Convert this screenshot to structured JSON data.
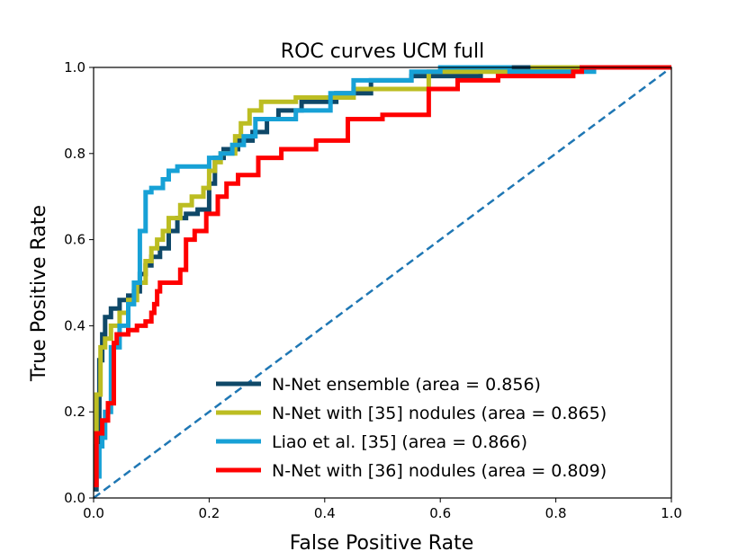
{
  "chart_data": {
    "type": "line",
    "title": "ROC curves UCM full",
    "xlabel": "False Positive Rate",
    "ylabel": "True Positive Rate",
    "xlim": [
      0,
      1
    ],
    "ylim": [
      0,
      1
    ],
    "xticks": [
      "0.0",
      "0.2",
      "0.4",
      "0.6",
      "0.8",
      "1.0"
    ],
    "yticks": [
      "0.0",
      "0.2",
      "0.4",
      "0.6",
      "0.8",
      "1.0"
    ],
    "grid": false,
    "legend_position": "lower-right",
    "diagonal": {
      "x": [
        0,
        1
      ],
      "y": [
        0,
        1
      ],
      "color": "#1f77b4",
      "style": "dashed"
    },
    "series": [
      {
        "name": "N-Net ensemble (area = 0.856)",
        "color": "#0f4868",
        "x": [
          0,
          0.005,
          0.005,
          0.01,
          0.01,
          0.015,
          0.015,
          0.02,
          0.02,
          0.03,
          0.03,
          0.045,
          0.045,
          0.06,
          0.06,
          0.07,
          0.07,
          0.08,
          0.08,
          0.09,
          0.09,
          0.1,
          0.1,
          0.115,
          0.115,
          0.13,
          0.13,
          0.145,
          0.145,
          0.16,
          0.16,
          0.18,
          0.18,
          0.2,
          0.2,
          0.21,
          0.21,
          0.225,
          0.225,
          0.25,
          0.25,
          0.275,
          0.275,
          0.3,
          0.3,
          0.32,
          0.32,
          0.36,
          0.36,
          0.42,
          0.42,
          0.48,
          0.48,
          0.55,
          0.55,
          0.67,
          0.67,
          0.78,
          0.78,
          0.85,
          0.85,
          1.0
        ],
        "y": [
          0.02,
          0.02,
          0.12,
          0.12,
          0.32,
          0.32,
          0.38,
          0.38,
          0.42,
          0.42,
          0.44,
          0.44,
          0.46,
          0.46,
          0.47,
          0.47,
          0.48,
          0.48,
          0.52,
          0.52,
          0.54,
          0.54,
          0.56,
          0.56,
          0.58,
          0.58,
          0.62,
          0.62,
          0.65,
          0.65,
          0.66,
          0.66,
          0.67,
          0.67,
          0.73,
          0.73,
          0.79,
          0.79,
          0.81,
          0.81,
          0.83,
          0.83,
          0.85,
          0.85,
          0.88,
          0.88,
          0.9,
          0.9,
          0.92,
          0.92,
          0.94,
          0.94,
          0.97,
          0.97,
          0.98,
          0.98,
          1.0,
          1.0,
          1.0,
          1.0,
          1.0,
          1.0
        ]
      },
      {
        "name": "N-Net with [35] nodules (area = 0.865)",
        "color": "#bcbd22",
        "x": [
          0,
          0.005,
          0.005,
          0.012,
          0.012,
          0.02,
          0.02,
          0.03,
          0.03,
          0.045,
          0.045,
          0.06,
          0.06,
          0.075,
          0.075,
          0.09,
          0.09,
          0.1,
          0.1,
          0.11,
          0.11,
          0.12,
          0.12,
          0.13,
          0.13,
          0.15,
          0.15,
          0.17,
          0.17,
          0.19,
          0.19,
          0.2,
          0.2,
          0.21,
          0.21,
          0.22,
          0.22,
          0.245,
          0.245,
          0.255,
          0.255,
          0.27,
          0.27,
          0.29,
          0.29,
          0.35,
          0.35,
          0.45,
          0.45,
          0.58,
          0.58,
          0.76,
          0.76,
          0.85,
          0.85,
          1.0
        ],
        "y": [
          0.05,
          0.05,
          0.24,
          0.24,
          0.35,
          0.35,
          0.37,
          0.37,
          0.4,
          0.4,
          0.43,
          0.43,
          0.46,
          0.46,
          0.5,
          0.5,
          0.55,
          0.55,
          0.58,
          0.58,
          0.6,
          0.6,
          0.62,
          0.62,
          0.65,
          0.65,
          0.68,
          0.68,
          0.7,
          0.7,
          0.72,
          0.72,
          0.76,
          0.76,
          0.78,
          0.78,
          0.8,
          0.8,
          0.84,
          0.84,
          0.87,
          0.87,
          0.9,
          0.9,
          0.92,
          0.92,
          0.93,
          0.93,
          0.95,
          0.95,
          0.99,
          0.99,
          1.0,
          1.0,
          1.0,
          1.0
        ]
      },
      {
        "name": "Liao et al. [35] (area = 0.866)",
        "color": "#17a1d6",
        "x": [
          0,
          0.005,
          0.005,
          0.01,
          0.01,
          0.015,
          0.015,
          0.02,
          0.02,
          0.03,
          0.03,
          0.045,
          0.045,
          0.06,
          0.06,
          0.07,
          0.07,
          0.08,
          0.08,
          0.09,
          0.09,
          0.1,
          0.1,
          0.12,
          0.12,
          0.13,
          0.13,
          0.145,
          0.145,
          0.2,
          0.2,
          0.22,
          0.22,
          0.24,
          0.24,
          0.26,
          0.26,
          0.28,
          0.28,
          0.35,
          0.35,
          0.41,
          0.41,
          0.45,
          0.45,
          0.55,
          0.55,
          0.6,
          0.6,
          0.72,
          0.72,
          0.8,
          0.8,
          0.87,
          0.87
        ],
        "y": [
          0.03,
          0.03,
          0.05,
          0.05,
          0.12,
          0.12,
          0.14,
          0.14,
          0.2,
          0.2,
          0.35,
          0.35,
          0.4,
          0.4,
          0.45,
          0.45,
          0.5,
          0.5,
          0.62,
          0.62,
          0.71,
          0.71,
          0.72,
          0.72,
          0.74,
          0.74,
          0.76,
          0.76,
          0.77,
          0.77,
          0.79,
          0.79,
          0.8,
          0.8,
          0.82,
          0.82,
          0.84,
          0.84,
          0.88,
          0.88,
          0.9,
          0.9,
          0.94,
          0.94,
          0.97,
          0.97,
          0.99,
          0.99,
          1.0,
          1.0,
          0.99,
          0.99,
          0.99,
          0.99,
          0.99
        ]
      },
      {
        "name": "N-Net with [36] nodules (area = 0.809)",
        "color": "#ff0000",
        "x": [
          0,
          0.005,
          0.005,
          0.015,
          0.015,
          0.025,
          0.025,
          0.035,
          0.035,
          0.04,
          0.04,
          0.06,
          0.06,
          0.075,
          0.075,
          0.09,
          0.09,
          0.1,
          0.1,
          0.105,
          0.105,
          0.11,
          0.11,
          0.115,
          0.115,
          0.15,
          0.15,
          0.16,
          0.16,
          0.175,
          0.175,
          0.195,
          0.195,
          0.215,
          0.215,
          0.23,
          0.23,
          0.25,
          0.25,
          0.285,
          0.285,
          0.325,
          0.325,
          0.385,
          0.385,
          0.44,
          0.44,
          0.5,
          0.5,
          0.58,
          0.58,
          0.63,
          0.63,
          0.7,
          0.7,
          0.83,
          0.83,
          0.845,
          0.845,
          1.0
        ],
        "y": [
          0.03,
          0.03,
          0.15,
          0.15,
          0.18,
          0.18,
          0.22,
          0.22,
          0.36,
          0.36,
          0.38,
          0.38,
          0.39,
          0.39,
          0.4,
          0.4,
          0.41,
          0.41,
          0.43,
          0.43,
          0.45,
          0.45,
          0.48,
          0.48,
          0.5,
          0.5,
          0.53,
          0.53,
          0.6,
          0.6,
          0.62,
          0.62,
          0.66,
          0.66,
          0.7,
          0.7,
          0.73,
          0.73,
          0.75,
          0.75,
          0.79,
          0.79,
          0.81,
          0.81,
          0.83,
          0.83,
          0.88,
          0.88,
          0.89,
          0.89,
          0.95,
          0.95,
          0.97,
          0.97,
          0.98,
          0.98,
          0.99,
          0.99,
          1.0,
          1.0
        ]
      }
    ]
  }
}
